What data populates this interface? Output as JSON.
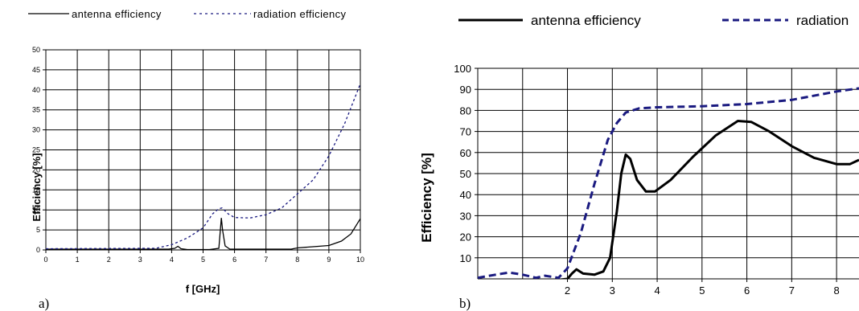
{
  "chart_data": [
    {
      "panel_label": "a)",
      "type": "line",
      "xlabel": "f [GHz]",
      "ylabel": "Efficiency [%]",
      "xlim": [
        0,
        10
      ],
      "ylim": [
        0,
        50
      ],
      "xticks": [
        "0",
        "1",
        "2",
        "3",
        "4",
        "5",
        "6",
        "7",
        "8",
        "9",
        "10"
      ],
      "yticks": [
        "0",
        "5",
        "10",
        "15",
        "20",
        "25",
        "30",
        "35",
        "40",
        "45",
        "50"
      ],
      "grid": true,
      "legend_position": "top",
      "series": [
        {
          "name": "antenna efficiency",
          "color": "#000000",
          "style": "solid",
          "points": [
            [
              0,
              0.2
            ],
            [
              3.9,
              0.2
            ],
            [
              4.1,
              0.4
            ],
            [
              4.2,
              0.9
            ],
            [
              4.3,
              0.3
            ],
            [
              4.5,
              0.1
            ],
            [
              5.2,
              0.1
            ],
            [
              5.5,
              0.4
            ],
            [
              5.58,
              8.0
            ],
            [
              5.62,
              5.0
            ],
            [
              5.7,
              1.0
            ],
            [
              5.85,
              0.2
            ],
            [
              7.8,
              0.2
            ],
            [
              8.0,
              0.5
            ],
            [
              8.5,
              0.8
            ],
            [
              9.0,
              1.1
            ],
            [
              9.4,
              2.2
            ],
            [
              9.7,
              4.0
            ],
            [
              10.0,
              7.8
            ]
          ]
        },
        {
          "name": "radiation efficiency",
          "color": "#1a1a80",
          "style": "dashed",
          "points": [
            [
              0,
              0.3
            ],
            [
              3.5,
              0.4
            ],
            [
              4.0,
              1.3
            ],
            [
              4.5,
              3.0
            ],
            [
              5.0,
              5.5
            ],
            [
              5.3,
              9.0
            ],
            [
              5.5,
              10.3
            ],
            [
              5.6,
              10.5
            ],
            [
              5.8,
              9.0
            ],
            [
              6.0,
              8.1
            ],
            [
              6.5,
              8.0
            ],
            [
              7.0,
              8.8
            ],
            [
              7.5,
              10.5
            ],
            [
              8.0,
              14.0
            ],
            [
              8.5,
              17.5
            ],
            [
              9.0,
              23.5
            ],
            [
              9.5,
              31.5
            ],
            [
              10.0,
              41.5
            ]
          ]
        }
      ]
    },
    {
      "panel_label": "b)",
      "type": "line",
      "xlabel": "",
      "ylabel": "Efficiency  [%]",
      "xlim": [
        0,
        8.5
      ],
      "ylim": [
        0,
        100
      ],
      "xticks": [
        "2",
        "3",
        "4",
        "5",
        "6",
        "7",
        "8"
      ],
      "yticks": [
        "10",
        "20",
        "30",
        "40",
        "50",
        "60",
        "70",
        "80",
        "90",
        "100"
      ],
      "grid": true,
      "legend_position": "top",
      "series": [
        {
          "name": "antenna efficiency",
          "color": "#000000",
          "style": "solid",
          "points": [
            [
              0.7,
              -1
            ],
            [
              1.8,
              -0.5
            ],
            [
              2.0,
              0
            ],
            [
              2.1,
              2.5
            ],
            [
              2.2,
              4.5
            ],
            [
              2.35,
              2.5
            ],
            [
              2.6,
              2.0
            ],
            [
              2.8,
              3.5
            ],
            [
              2.95,
              10.0
            ],
            [
              3.1,
              32.0
            ],
            [
              3.2,
              50.0
            ],
            [
              3.3,
              59.0
            ],
            [
              3.4,
              57.0
            ],
            [
              3.55,
              47.0
            ],
            [
              3.75,
              41.5
            ],
            [
              3.95,
              41.5
            ],
            [
              4.3,
              47.0
            ],
            [
              4.8,
              58.0
            ],
            [
              5.3,
              68.0
            ],
            [
              5.8,
              75.0
            ],
            [
              6.1,
              74.5
            ],
            [
              6.5,
              70.0
            ],
            [
              7.0,
              63.0
            ],
            [
              7.5,
              57.5
            ],
            [
              8.0,
              54.5
            ],
            [
              8.3,
              54.5
            ],
            [
              8.5,
              56.5
            ]
          ]
        },
        {
          "name": "radiation",
          "color": "#1a1a80",
          "style": "dashed",
          "points": [
            [
              0.0,
              0.5
            ],
            [
              0.4,
              2.0
            ],
            [
              0.7,
              3.0
            ],
            [
              1.0,
              2.0
            ],
            [
              1.3,
              0.5
            ],
            [
              1.5,
              1.5
            ],
            [
              1.8,
              0.5
            ],
            [
              2.0,
              5.0
            ],
            [
              2.3,
              22.0
            ],
            [
              2.6,
              45.0
            ],
            [
              2.9,
              66.0
            ],
            [
              3.1,
              74.0
            ],
            [
              3.3,
              79.0
            ],
            [
              3.6,
              81.0
            ],
            [
              4.0,
              81.5
            ],
            [
              5.0,
              82.0
            ],
            [
              6.0,
              83.0
            ],
            [
              7.0,
              85.0
            ],
            [
              8.0,
              89.0
            ],
            [
              8.5,
              90.5
            ]
          ]
        }
      ]
    }
  ]
}
